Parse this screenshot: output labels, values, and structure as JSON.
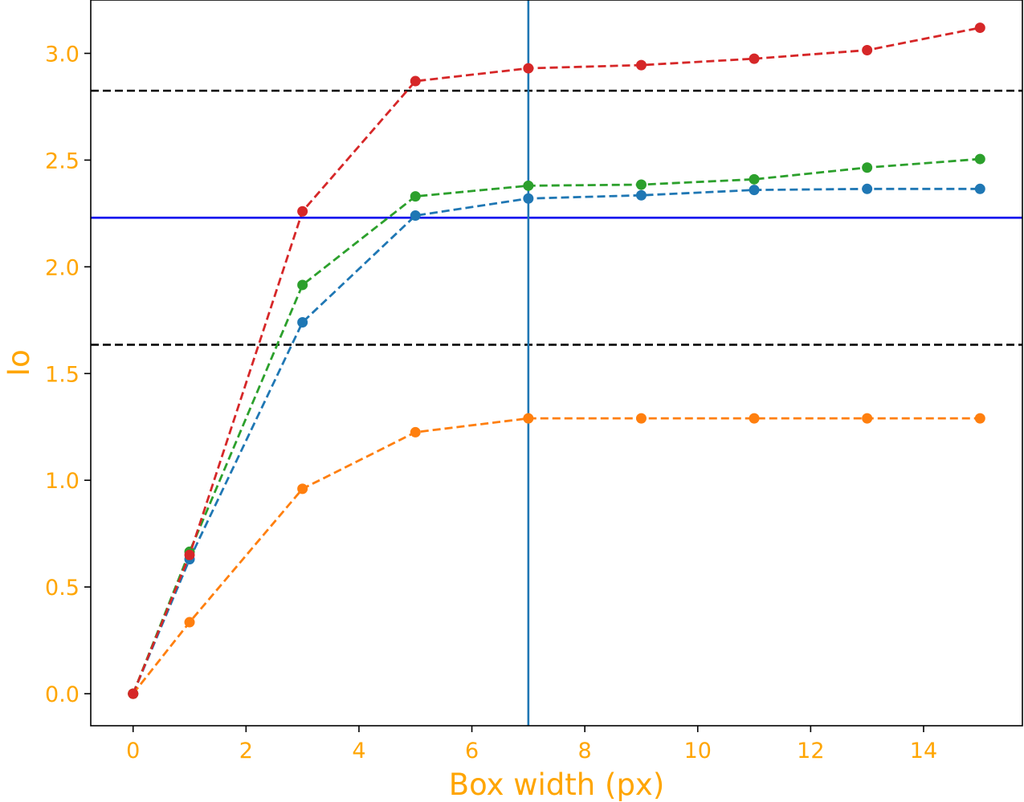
{
  "chart_data": {
    "type": "line",
    "title": "",
    "xlabel": "Box width (px)",
    "ylabel": "Io",
    "xlim": [
      -0.75,
      15.75
    ],
    "ylim": [
      -0.15,
      3.25
    ],
    "xticks": [
      0,
      2,
      4,
      6,
      8,
      10,
      12,
      14
    ],
    "xtick_labels": [
      "0",
      "2",
      "4",
      "6",
      "8",
      "10",
      "12",
      "14"
    ],
    "yticks": [
      0.0,
      0.5,
      1.0,
      1.5,
      2.0,
      2.5,
      3.0
    ],
    "ytick_labels": [
      "0.0",
      "0.5",
      "1.0",
      "1.5",
      "2.0",
      "2.5",
      "3.0"
    ],
    "grid": false,
    "label_color": "#ffa500",
    "x": [
      0,
      1,
      3,
      5,
      7,
      9,
      11,
      13,
      15
    ],
    "series": [
      {
        "color": "#1f77b4",
        "values": [
          0.0,
          0.63,
          1.74,
          2.24,
          2.32,
          2.335,
          2.36,
          2.365,
          2.365
        ]
      },
      {
        "color": "#ff7f0e",
        "values": [
          0.0,
          0.335,
          0.96,
          1.225,
          1.29,
          1.29,
          1.29,
          1.29,
          1.29
        ]
      },
      {
        "color": "#2ca02c",
        "values": [
          0.0,
          0.665,
          1.915,
          2.33,
          2.38,
          2.385,
          2.41,
          2.465,
          2.505
        ]
      },
      {
        "color": "#d62728",
        "values": [
          0.0,
          0.65,
          2.26,
          2.87,
          2.93,
          2.945,
          2.975,
          3.015,
          3.12
        ]
      }
    ],
    "reference_lines": [
      {
        "orientation": "horizontal",
        "value": 2.825,
        "color": "#000000",
        "style": "dashed"
      },
      {
        "orientation": "horizontal",
        "value": 2.23,
        "color": "#0000ee",
        "style": "solid"
      },
      {
        "orientation": "horizontal",
        "value": 1.635,
        "color": "#000000",
        "style": "dashed"
      },
      {
        "orientation": "vertical",
        "value": 7,
        "color": "#1f77b4",
        "style": "solid"
      }
    ]
  }
}
